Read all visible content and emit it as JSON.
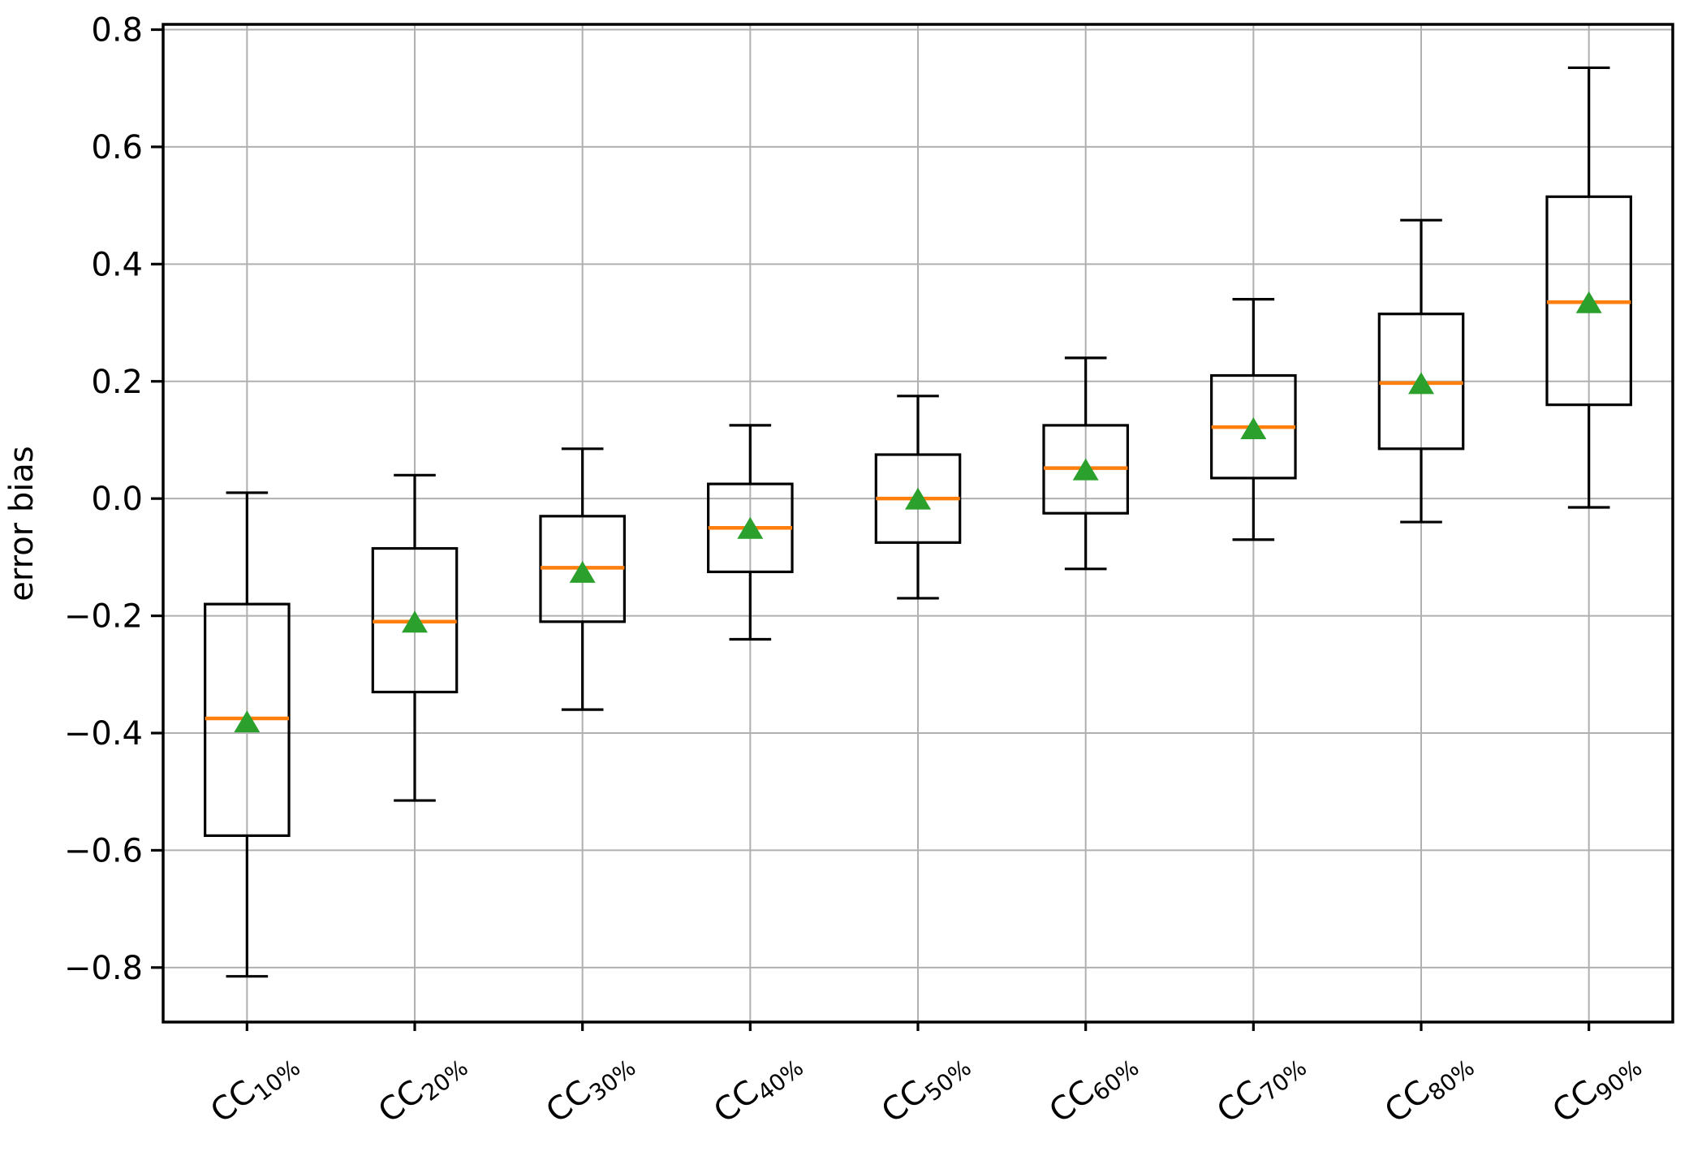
{
  "chart_data": {
    "type": "boxplot",
    "title": "",
    "xlabel": "",
    "ylabel": "error bias",
    "categories": [
      "CC10%",
      "CC20%",
      "CC30%",
      "CC40%",
      "CC50%",
      "CC60%",
      "CC70%",
      "CC80%",
      "CC90%"
    ],
    "category_labels": [
      {
        "base": "CC",
        "sub": "10%"
      },
      {
        "base": "CC",
        "sub": "20%"
      },
      {
        "base": "CC",
        "sub": "30%"
      },
      {
        "base": "CC",
        "sub": "40%"
      },
      {
        "base": "CC",
        "sub": "50%"
      },
      {
        "base": "CC",
        "sub": "60%"
      },
      {
        "base": "CC",
        "sub": "70%"
      },
      {
        "base": "CC",
        "sub": "80%"
      },
      {
        "base": "CC",
        "sub": "90%"
      }
    ],
    "boxes": [
      {
        "category": "CC10%",
        "whisker_low": -0.815,
        "q1": -0.575,
        "median": -0.375,
        "mean": -0.38,
        "q3": -0.18,
        "whisker_high": 0.01
      },
      {
        "category": "CC20%",
        "whisker_low": -0.515,
        "q1": -0.33,
        "median": -0.21,
        "mean": -0.21,
        "q3": -0.085,
        "whisker_high": 0.04
      },
      {
        "category": "CC30%",
        "whisker_low": -0.36,
        "q1": -0.21,
        "median": -0.118,
        "mean": -0.125,
        "q3": -0.03,
        "whisker_high": 0.085
      },
      {
        "category": "CC40%",
        "whisker_low": -0.24,
        "q1": -0.125,
        "median": -0.05,
        "mean": -0.05,
        "q3": 0.025,
        "whisker_high": 0.125
      },
      {
        "category": "CC50%",
        "whisker_low": -0.17,
        "q1": -0.075,
        "median": 0.0,
        "mean": 0.0,
        "q3": 0.075,
        "whisker_high": 0.175
      },
      {
        "category": "CC60%",
        "whisker_low": -0.12,
        "q1": -0.025,
        "median": 0.052,
        "mean": 0.05,
        "q3": 0.125,
        "whisker_high": 0.24
      },
      {
        "category": "CC70%",
        "whisker_low": -0.07,
        "q1": 0.035,
        "median": 0.122,
        "mean": 0.12,
        "q3": 0.21,
        "whisker_high": 0.34
      },
      {
        "category": "CC80%",
        "whisker_low": -0.04,
        "q1": 0.085,
        "median": 0.197,
        "mean": 0.197,
        "q3": 0.315,
        "whisker_high": 0.475
      },
      {
        "category": "CC90%",
        "whisker_low": -0.015,
        "q1": 0.16,
        "median": 0.335,
        "mean": 0.335,
        "q3": 0.515,
        "whisker_high": 0.735
      }
    ],
    "ylim": [
      -0.893,
      0.809
    ],
    "yticks": [
      0.8,
      0.6,
      0.4,
      0.2,
      0.0,
      -0.2,
      -0.4,
      -0.6,
      -0.8
    ],
    "ytick_labels": [
      "0.8",
      "0.6",
      "0.4",
      "0.2",
      "0.0",
      "−0.2",
      "−0.4",
      "−0.6",
      "−0.8"
    ],
    "grid": true,
    "legend_position": "none",
    "colors": {
      "median": "#ff7f0e",
      "mean_marker": "#2ca02c",
      "box_line": "#000000",
      "grid": "#b0b0b0",
      "background": "#ffffff"
    }
  }
}
